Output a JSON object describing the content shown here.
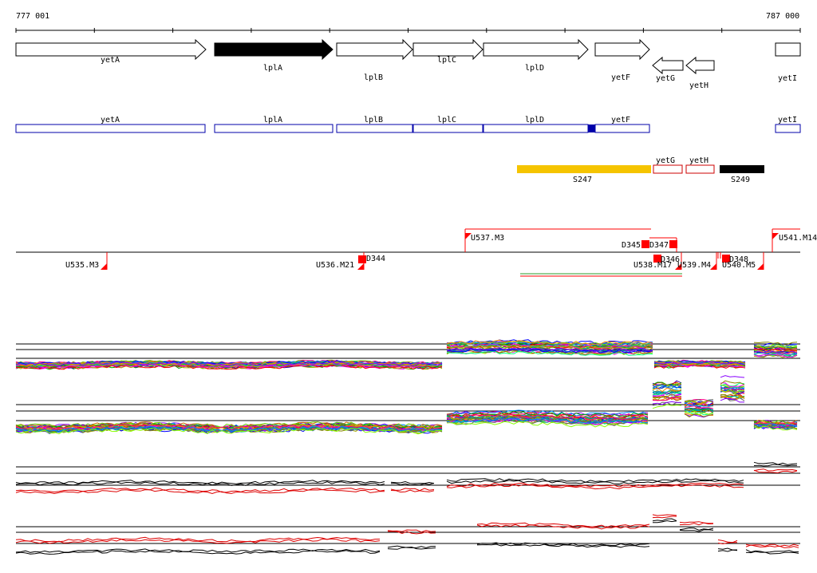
{
  "coords": {
    "start": "777 001",
    "end": "787 000"
  },
  "genes": [
    {
      "name": "yetA",
      "strand": "+",
      "filled": false
    },
    {
      "name": "lplA",
      "strand": "+",
      "filled": true
    },
    {
      "name": "lplB",
      "strand": "+",
      "filled": false
    },
    {
      "name": "lplC",
      "strand": "+",
      "filled": false
    },
    {
      "name": "lplD",
      "strand": "+",
      "filled": false
    },
    {
      "name": "yetF",
      "strand": "+",
      "filled": false
    },
    {
      "name": "yetG",
      "strand": "-",
      "filled": false
    },
    {
      "name": "yetH",
      "strand": "-",
      "filled": false
    },
    {
      "name": "yetI",
      "strand": "+",
      "filled": false
    }
  ],
  "transcripts": [
    "yetA",
    "lplA",
    "lplB",
    "lplC",
    "lplD",
    "yetF",
    "yetI"
  ],
  "segments": [
    {
      "name": "S247",
      "color": "#f5c400"
    },
    {
      "name": "yetG",
      "color": "#cc0000"
    },
    {
      "name": "yetH",
      "color": "#cc0000"
    },
    {
      "name": "S249",
      "color": "#000000"
    }
  ],
  "features_upper": [
    "U537.M3",
    "D345",
    "D347",
    "U541.M14"
  ],
  "features_lower": [
    "U535.M3",
    "U536.M21",
    "D344",
    "D346",
    "U538.M17",
    "U539.M4",
    "D348",
    "U540.M5"
  ],
  "colors": {
    "transcript": "#0000aa",
    "feature": "#ff0000",
    "track_red": "#dd0000"
  }
}
